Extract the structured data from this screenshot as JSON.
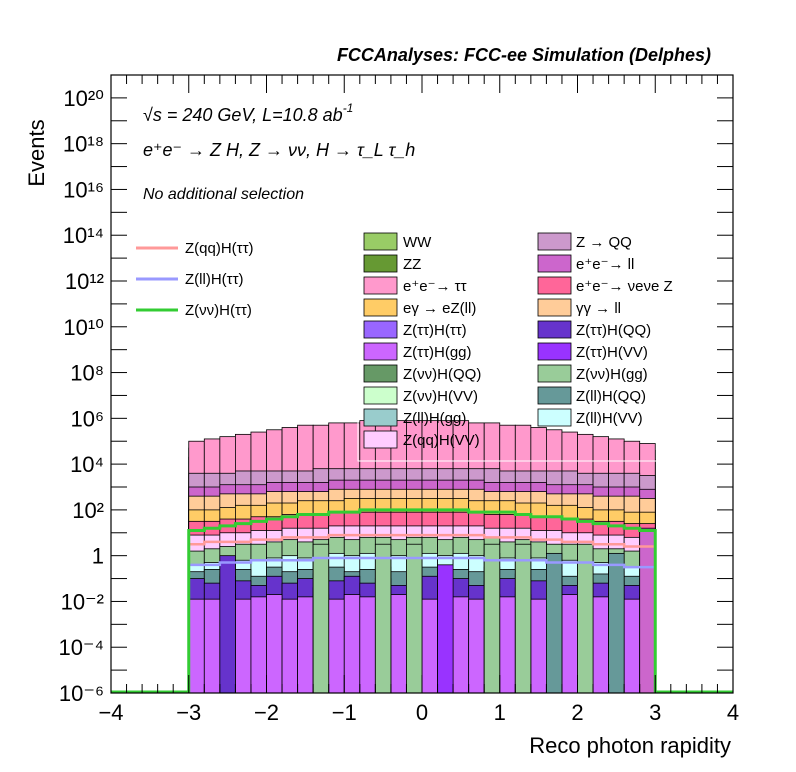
{
  "chart_data": {
    "type": "histogram-stack",
    "header": "FCCAnalyses: FCC-ee Simulation (Delphes)",
    "annotations": {
      "energy_prefix": "√s = 240 GeV, L=10.8 ab",
      "energy_sup": "-1",
      "process": "e⁺e⁻ → Z H, Z → νν, H → τ_L τ_h",
      "selection": "No additional selection"
    },
    "xlabel": "Reco photon rapidity",
    "ylabel": "Events",
    "xlim": [
      -4,
      4
    ],
    "ylog": true,
    "ylim_exp": [
      -6,
      21
    ],
    "x_ticks": [
      "−4",
      "−2",
      "0",
      "2",
      "4",
      "−3",
      "−1",
      "1",
      "3"
    ],
    "x_tick_values": [
      -4,
      -2,
      0,
      2,
      4,
      -3,
      -1,
      1,
      3
    ],
    "y_ticks": [
      "10⁻⁶",
      "10⁻⁴",
      "10⁻²",
      "1",
      "10²",
      "10⁴",
      "10⁶",
      "10⁸",
      "10¹⁰",
      "10¹²",
      "10¹⁴",
      "10¹⁶",
      "10¹⁸",
      "10²⁰"
    ],
    "y_tick_exps": [
      -6,
      -4,
      -2,
      0,
      2,
      4,
      6,
      8,
      10,
      12,
      14,
      16,
      18,
      20
    ],
    "bin_edges": [
      -3.0,
      3.0
    ],
    "n_bins": 30,
    "stack_levels_log10": [
      {
        "name": "WW",
        "color": "#99cc66",
        "top": [
          4.7,
          4.8,
          4.9,
          5.0,
          5.1,
          5.2,
          5.3,
          5.4,
          5.4,
          5.5,
          5.5,
          5.6,
          5.6,
          5.6,
          5.6,
          5.6,
          5.6,
          5.6,
          5.5,
          5.5,
          5.4,
          5.4,
          5.3,
          5.2,
          5.1,
          5.0,
          4.9,
          4.8,
          4.7,
          4.6
        ]
      },
      {
        "name": "ZZ",
        "color": "#669933",
        "top": [
          4.3,
          4.3,
          4.4,
          4.4,
          4.5,
          4.5,
          4.5,
          4.6,
          4.6,
          4.6,
          4.6,
          4.7,
          4.7,
          4.7,
          4.7,
          4.7,
          4.7,
          4.7,
          4.6,
          4.6,
          4.6,
          4.6,
          4.5,
          4.5,
          4.5,
          4.4,
          4.4,
          4.3,
          4.3,
          4.2
        ]
      },
      {
        "name": "e+e- → ττ",
        "color": "#ff99cc",
        "top": [
          5.0,
          5.1,
          5.2,
          5.3,
          5.4,
          5.5,
          5.6,
          5.7,
          5.7,
          5.8,
          5.8,
          5.9,
          5.9,
          5.9,
          5.9,
          5.9,
          5.9,
          5.9,
          5.8,
          5.8,
          5.7,
          5.7,
          5.6,
          5.5,
          5.4,
          5.3,
          5.2,
          5.1,
          5.0,
          4.9
        ]
      },
      {
        "name": "Z → QQ",
        "color": "#cc99cc",
        "top": [
          3.6,
          3.6,
          3.6,
          3.7,
          3.7,
          3.7,
          3.7,
          3.7,
          3.8,
          3.8,
          3.8,
          3.8,
          3.8,
          3.8,
          3.8,
          3.8,
          3.8,
          3.8,
          3.8,
          3.8,
          3.7,
          3.7,
          3.7,
          3.7,
          3.7,
          3.6,
          3.6,
          3.6,
          3.6,
          3.5
        ]
      },
      {
        "name": "e+e- → ll",
        "color": "#cc66cc",
        "top": [
          3.0,
          3.0,
          3.1,
          3.1,
          3.1,
          3.2,
          3.2,
          3.2,
          3.2,
          3.3,
          3.3,
          3.3,
          3.3,
          3.3,
          3.3,
          3.3,
          3.3,
          3.3,
          3.3,
          3.2,
          3.2,
          3.2,
          3.2,
          3.1,
          3.1,
          3.1,
          3.0,
          3.0,
          3.0,
          2.9
        ]
      },
      {
        "name": "γγ → ll",
        "color": "#ffcc99",
        "top": [
          2.6,
          2.6,
          2.7,
          2.7,
          2.7,
          2.8,
          2.8,
          2.8,
          2.8,
          2.9,
          2.9,
          2.9,
          2.9,
          2.9,
          2.9,
          2.9,
          2.9,
          2.9,
          2.9,
          2.8,
          2.8,
          2.8,
          2.8,
          2.7,
          2.7,
          2.7,
          2.6,
          2.6,
          2.6,
          2.5
        ]
      },
      {
        "name": "eγ → eZ(ll)",
        "color": "#ffcc66",
        "top": [
          2.0,
          2.0,
          2.1,
          2.2,
          2.2,
          2.3,
          2.3,
          2.4,
          2.4,
          2.4,
          2.5,
          2.5,
          2.5,
          2.5,
          2.5,
          2.5,
          2.5,
          2.5,
          2.4,
          2.4,
          2.4,
          2.3,
          2.3,
          2.2,
          2.2,
          2.1,
          2.0,
          2.0,
          1.9,
          1.9
        ]
      },
      {
        "name": "e+e- → νeνe Z",
        "color": "#ff6699",
        "top": [
          1.5,
          1.5,
          1.6,
          1.6,
          1.7,
          1.7,
          1.8,
          1.8,
          1.8,
          1.9,
          1.9,
          1.9,
          1.9,
          1.9,
          1.9,
          1.9,
          1.9,
          1.9,
          1.9,
          1.8,
          1.8,
          1.8,
          1.7,
          1.7,
          1.6,
          1.6,
          1.5,
          1.5,
          1.4,
          1.4
        ]
      },
      {
        "name": "Z(qq)H(VV)",
        "color": "#ffccff",
        "top": [
          0.9,
          0.9,
          1.0,
          1.0,
          1.1,
          1.1,
          1.2,
          1.2,
          1.2,
          1.3,
          1.3,
          1.3,
          1.3,
          1.3,
          1.3,
          1.3,
          1.3,
          1.3,
          1.3,
          1.2,
          1.2,
          1.2,
          1.1,
          1.1,
          1.0,
          1.0,
          0.9,
          0.9,
          0.8,
          0.8
        ]
      },
      {
        "name": "Z(νν)H(gg)",
        "color": "#99cc99",
        "top": [
          0.2,
          0.3,
          0.4,
          0.5,
          0.5,
          0.6,
          0.7,
          0.6,
          0.7,
          0.8,
          0.7,
          0.8,
          0.8,
          0.7,
          0.8,
          0.8,
          0.7,
          0.8,
          0.7,
          0.8,
          0.6,
          0.7,
          0.6,
          0.5,
          0.5,
          0.4,
          0.3,
          0.3,
          0.2,
          0.1
        ]
      },
      {
        "name": "Z(ll)H(VV)",
        "color": "#ccffff",
        "top": [
          -0.4,
          -0.3,
          -0.3,
          -0.2,
          -0.2,
          -0.1,
          0.0,
          -0.1,
          0.0,
          0.1,
          0.0,
          0.1,
          0.1,
          0.0,
          0.1,
          0.1,
          0.0,
          0.1,
          0.0,
          0.1,
          -0.1,
          0.0,
          -0.1,
          -0.2,
          -0.2,
          -0.3,
          -0.3,
          -0.4,
          -0.5,
          -0.6
        ]
      },
      {
        "name": "Z(ll)H(QQ)",
        "color": "#669999",
        "top": [
          -0.7,
          -0.6,
          -0.8,
          -0.6,
          -0.9,
          -0.5,
          -0.7,
          -0.6,
          -0.8,
          -0.5,
          -0.7,
          -0.6,
          -0.5,
          -0.7,
          -0.6,
          -0.5,
          -0.8,
          -0.6,
          -0.7,
          -0.5,
          -0.6,
          -0.8,
          -0.6,
          -0.7,
          -0.9,
          -0.6,
          -0.8,
          -0.7,
          -0.9,
          -1.0
        ]
      },
      {
        "name": "Z(ττ)H(QQ)",
        "color": "#6633cc",
        "top": [
          -1.0,
          -1.2,
          -0.9,
          -1.1,
          -1.3,
          -0.9,
          -1.2,
          -1.0,
          -1.4,
          -1.1,
          -0.9,
          -1.2,
          -1.0,
          -1.3,
          -1.1,
          -0.9,
          -1.2,
          -1.0,
          -1.3,
          -1.1,
          -1.0,
          -1.4,
          -1.1,
          -1.2,
          -1.3,
          -1.0,
          -1.2,
          -1.1,
          -1.3,
          -1.4
        ]
      },
      {
        "name": "Z(ττ)H(gg)",
        "color": "#cc66ff",
        "top": [
          -1.9,
          -1.9,
          -1.7,
          -1.9,
          -1.8,
          -1.7,
          -1.9,
          -1.8,
          -1.7,
          -1.9,
          -1.7,
          -1.8,
          -1.9,
          -1.7,
          -1.8,
          -1.9,
          -1.7,
          -1.8,
          -1.9,
          -1.7,
          -1.8,
          -1.7,
          -1.9,
          -1.8,
          -1.7,
          -1.9,
          -1.8,
          -1.7,
          -1.9,
          -1.8
        ]
      }
    ],
    "extra_bars_log10": [
      {
        "name": "Z(νν)H(gg)",
        "color": "#99cc99",
        "bins": [
          9,
          13,
          15,
          20,
          22,
          26
        ],
        "top": 0.5
      },
      {
        "name": "Z(ττ)H(QQ)",
        "color": "#6633cc",
        "bins": [
          3
        ],
        "top": 0.0
      },
      {
        "name": "Z(ll)H(QQ)",
        "color": "#669999",
        "bins": [
          24,
          28
        ],
        "top": 0.1
      },
      {
        "name": "Z(ττ)H(VV)",
        "color": "#9933ff",
        "bins": [
          17
        ],
        "top": -0.4
      },
      {
        "name": "e+e- → ll",
        "color": "#cc66cc",
        "bins": [
          30
        ],
        "top": 1.2
      }
    ],
    "signal_lines_log10": [
      {
        "name": "Z(qq)H(ττ)",
        "color": "#ff9999",
        "values": [
          0.5,
          0.6,
          0.6,
          0.6,
          0.7,
          0.7,
          0.8,
          0.8,
          0.8,
          0.9,
          0.9,
          0.9,
          0.9,
          0.9,
          0.9,
          0.9,
          0.9,
          0.9,
          0.9,
          0.8,
          0.8,
          0.8,
          0.7,
          0.7,
          0.6,
          0.6,
          0.5,
          0.5,
          0.4,
          0.4
        ]
      },
      {
        "name": "Z(ll)H(ττ)",
        "color": "#9999ff",
        "values": [
          -0.4,
          -0.4,
          -0.3,
          -0.3,
          -0.2,
          -0.2,
          -0.2,
          -0.2,
          -0.1,
          -0.1,
          -0.1,
          -0.1,
          -0.1,
          -0.1,
          -0.1,
          -0.1,
          -0.1,
          -0.1,
          -0.1,
          -0.2,
          -0.2,
          -0.2,
          -0.2,
          -0.3,
          -0.3,
          -0.3,
          -0.4,
          -0.4,
          -0.5,
          -0.5
        ]
      },
      {
        "name": "Z(νν)H(ττ)",
        "color": "#33cc33",
        "values": [
          1.1,
          1.2,
          1.3,
          1.4,
          1.5,
          1.6,
          1.7,
          1.8,
          1.8,
          1.9,
          1.9,
          2.0,
          2.0,
          2.0,
          2.0,
          2.0,
          2.0,
          2.0,
          1.9,
          1.9,
          1.9,
          1.8,
          1.7,
          1.7,
          1.6,
          1.5,
          1.4,
          1.3,
          1.2,
          1.1
        ]
      }
    ],
    "legend_left": [
      {
        "label": "Z(qq)H(ττ)",
        "color": "#ff9999"
      },
      {
        "label": "Z(ll)H(ττ)",
        "color": "#9999ff"
      },
      {
        "label": "Z(νν)H(ττ)",
        "color": "#33cc33"
      }
    ],
    "legend_right_col1": [
      {
        "label": "WW",
        "color": "#99cc66"
      },
      {
        "label": "ZZ",
        "color": "#669933"
      },
      {
        "label": "e⁺e⁻→ ττ",
        "color": "#ff99cc"
      },
      {
        "label": "eγ → eZ(ll)",
        "color": "#ffcc66"
      },
      {
        "label": "Z(ττ)H(ττ)",
        "color": "#9966ff"
      },
      {
        "label": "Z(ττ)H(gg)",
        "color": "#cc66ff"
      },
      {
        "label": "Z(νν)H(QQ)",
        "color": "#669966"
      },
      {
        "label": "Z(νν)H(VV)",
        "color": "#ccffcc"
      },
      {
        "label": "Z(ll)H(gg)",
        "color": "#99cccc"
      },
      {
        "label": "Z(qq)H(VV)",
        "color": "#ffccff"
      }
    ],
    "legend_right_col2": [
      {
        "label": "Z → QQ",
        "color": "#cc99cc"
      },
      {
        "label": "e⁺e⁻→ ll",
        "color": "#cc66cc"
      },
      {
        "label": "e⁺e⁻→ νeνe Z",
        "color": "#ff6699"
      },
      {
        "label": "γγ → ll",
        "color": "#ffcc99"
      },
      {
        "label": "Z(ττ)H(QQ)",
        "color": "#6633cc"
      },
      {
        "label": "Z(ττ)H(VV)",
        "color": "#9933ff"
      },
      {
        "label": "Z(νν)H(gg)",
        "color": "#99cc99"
      },
      {
        "label": "Z(ll)H(QQ)",
        "color": "#669999"
      },
      {
        "label": "Z(ll)H(VV)",
        "color": "#ccffff"
      }
    ]
  }
}
